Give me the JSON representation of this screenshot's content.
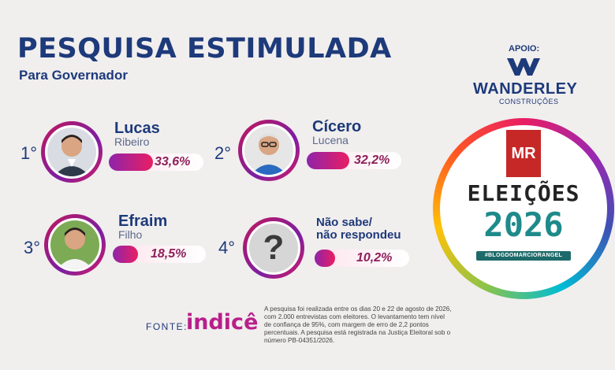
{
  "header": {
    "title": "PESQUISA ESTIMULADA",
    "subtitle": "Para Governador"
  },
  "candidates": [
    {
      "rank": "1°",
      "first_name": "Lucas",
      "last_name": "Ribeiro",
      "percent_label": "33,6%",
      "percent": 33.6
    },
    {
      "rank": "2°",
      "first_name": "Cícero",
      "last_name": "Lucena",
      "percent_label": "32,2%",
      "percent": 32.2
    },
    {
      "rank": "3°",
      "first_name": "Efraim",
      "last_name": "Filho",
      "percent_label": "18,5%",
      "percent": 18.5
    },
    {
      "rank": "4°",
      "label_line1": "Não sabe/",
      "label_line2": "não respondeu",
      "percent_label": "10,2%",
      "percent": 10.2,
      "icon": "question-icon"
    }
  ],
  "sponsor": {
    "label": "APOIO:",
    "name": "WANDERLEY",
    "sub": "CONSTRUÇÕES"
  },
  "badge": {
    "logo": "MR",
    "line1": "ELEIÇÕES",
    "line2": "2026",
    "tag": "#BLOGDOMARCIORANGEL"
  },
  "footer": {
    "fonte_label": "FONTE:",
    "fonte_name": "indicê",
    "note": "A pesquisa foi realizada entre os dias 20 e 22 de agosto de 2026, com 2.000 entrevistas com eleitores. O levantamento tem nível de confiança de 95%, com margem de erro de 2,2 pontos percentuais. A pesquisa está registrada na Justiça Eleitoral sob o número PB-04351/2026."
  },
  "colors": {
    "navy": "#1d3a7a",
    "magenta": "#e91e63",
    "purple": "#8e24aa",
    "teal": "#1e8a8a"
  }
}
